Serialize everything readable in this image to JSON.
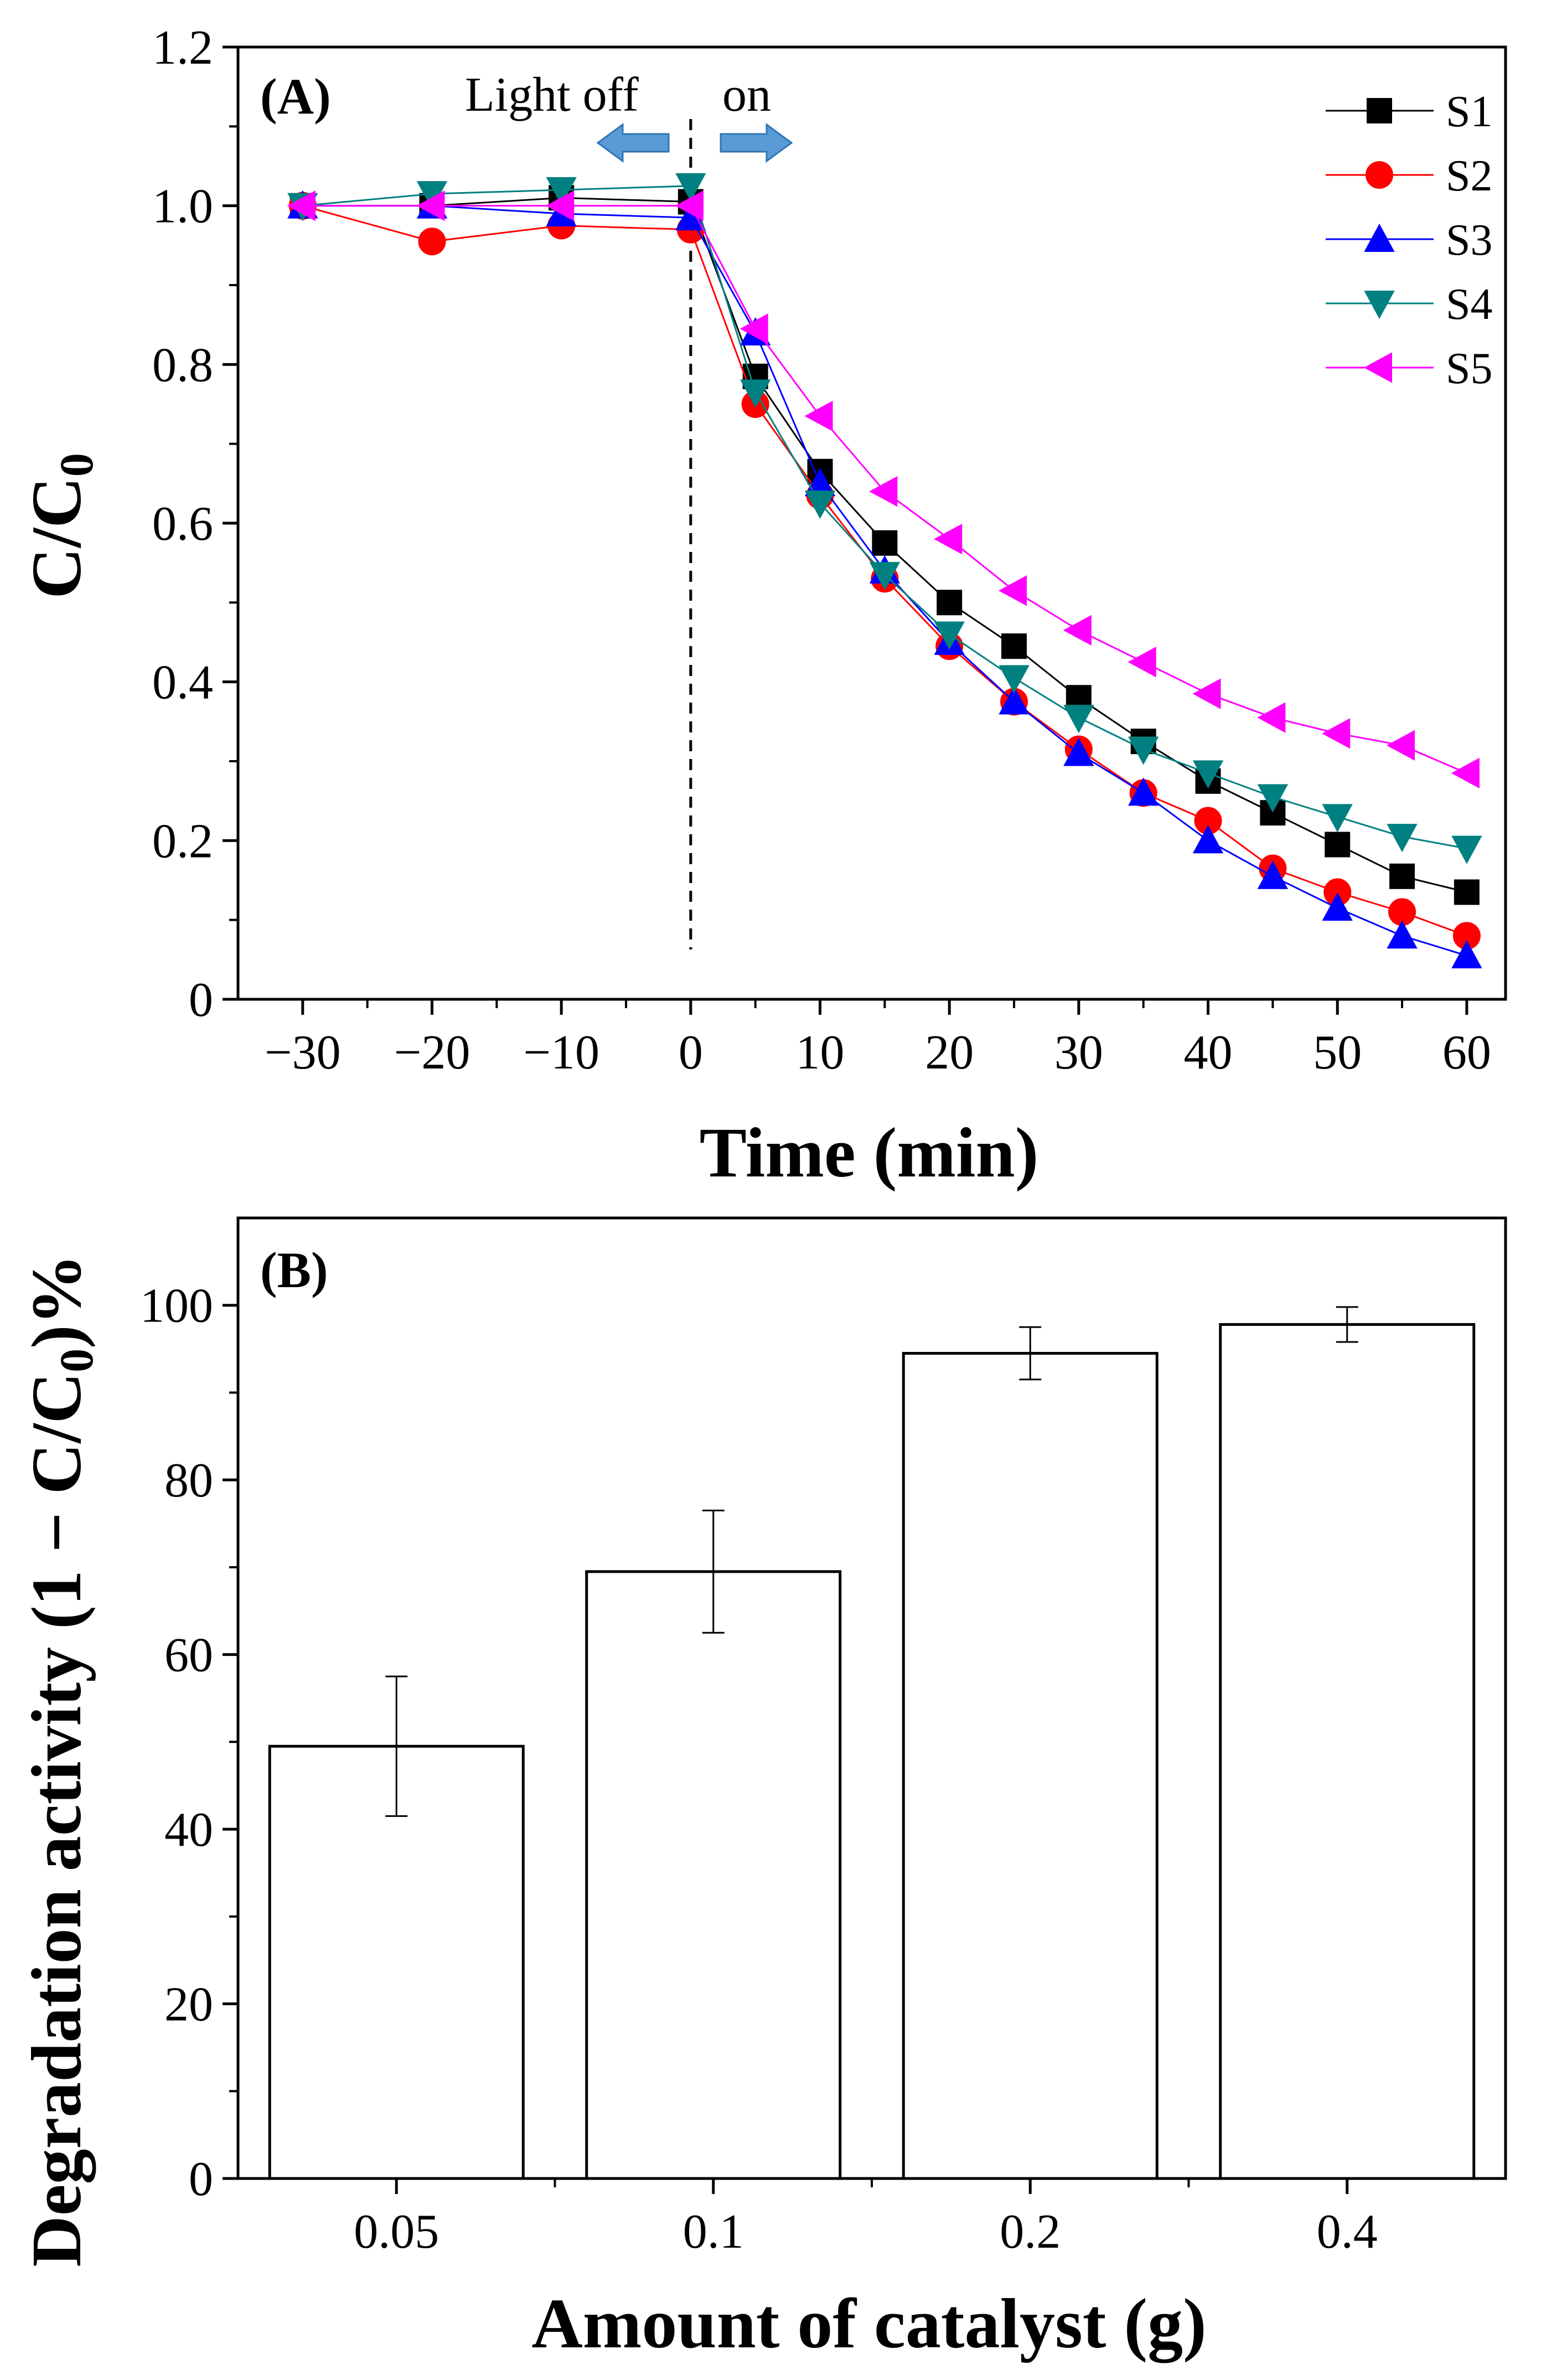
{
  "chart_data": [
    {
      "type": "line",
      "panel_label": "(A)",
      "xlabel": "Time (min)",
      "ylabel": "C/C",
      "ylabel_sub": "0",
      "xlim": [
        -35,
        63
      ],
      "ylim": [
        0,
        1.2
      ],
      "xticks": [
        -30,
        -20,
        -10,
        0,
        10,
        20,
        30,
        40,
        50,
        60
      ],
      "xtick_labels": [
        "−30",
        "−20",
        "−10",
        "0",
        "10",
        "20",
        "30",
        "40",
        "50",
        "60"
      ],
      "yticks": [
        0,
        0.2,
        0.4,
        0.6,
        0.8,
        1.0,
        1.2
      ],
      "ytick_labels": [
        "0",
        "0.2",
        "0.4",
        "0.6",
        "0.8",
        "1.0",
        "1.2"
      ],
      "x": [
        -30,
        -20,
        -10,
        0,
        5,
        10,
        15,
        20,
        25,
        30,
        35,
        40,
        45,
        50,
        55,
        60
      ],
      "annotations": {
        "light_off": "Light off",
        "light_on": "on",
        "divider_x": 0
      },
      "series": [
        {
          "name": "S1",
          "color": "#000000",
          "marker": "square",
          "values": [
            1.0,
            1.0,
            1.01,
            1.005,
            0.785,
            0.665,
            0.575,
            0.5,
            0.445,
            0.38,
            0.325,
            0.275,
            0.235,
            0.195,
            0.155,
            0.135
          ]
        },
        {
          "name": "S2",
          "color": "#ff0000",
          "marker": "circle",
          "values": [
            1.0,
            0.955,
            0.975,
            0.97,
            0.75,
            0.635,
            0.53,
            0.445,
            0.375,
            0.315,
            0.26,
            0.225,
            0.165,
            0.135,
            0.11,
            0.08
          ]
        },
        {
          "name": "S3",
          "color": "#0000ff",
          "marker": "triangle-up",
          "values": [
            1.0,
            1.0,
            0.99,
            0.985,
            0.84,
            0.65,
            0.54,
            0.45,
            0.375,
            0.31,
            0.26,
            0.2,
            0.155,
            0.115,
            0.08,
            0.055
          ]
        },
        {
          "name": "S4",
          "color": "#008080",
          "marker": "triangle-down",
          "values": [
            1.0,
            1.015,
            1.02,
            1.025,
            0.765,
            0.625,
            0.535,
            0.46,
            0.405,
            0.355,
            0.315,
            0.285,
            0.255,
            0.23,
            0.205,
            0.19
          ]
        },
        {
          "name": "S5",
          "color": "#ff00ff",
          "marker": "triangle-left",
          "values": [
            1.0,
            1.0,
            1.0,
            1.0,
            0.845,
            0.735,
            0.64,
            0.58,
            0.515,
            0.465,
            0.425,
            0.385,
            0.355,
            0.335,
            0.32,
            0.285
          ]
        }
      ],
      "legend_position": "top-right"
    },
    {
      "type": "bar",
      "panel_label": "(B)",
      "xlabel": "Amount of catalyst (g)",
      "ylabel_prefix": "Degradation activity (1 − C/C",
      "ylabel_sub": "0",
      "ylabel_suffix": ")%",
      "categories": [
        "0.05",
        "0.1",
        "0.2",
        "0.4"
      ],
      "values": [
        49.5,
        69.5,
        94.5,
        97.8
      ],
      "errors": [
        8,
        7,
        3,
        2
      ],
      "ylim": [
        0,
        110
      ],
      "yticks": [
        0,
        20,
        40,
        60,
        80,
        100
      ],
      "ytick_labels": [
        "0",
        "20",
        "40",
        "60",
        "80",
        "100"
      ],
      "bar_fill": "#ffffff",
      "bar_edge": "#000000"
    }
  ]
}
